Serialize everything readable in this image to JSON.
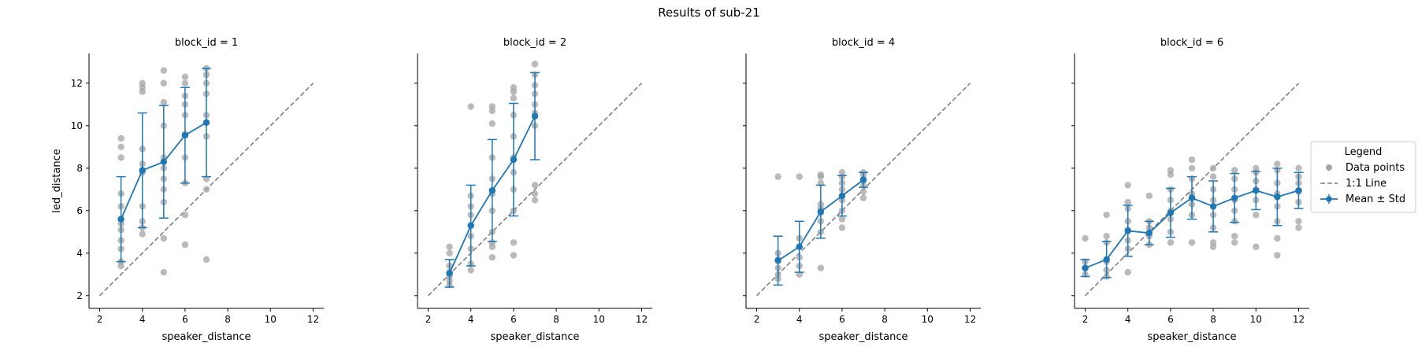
{
  "figure_title": "Results of sub-21",
  "legend": {
    "title": "Legend",
    "items": [
      {
        "label": "Data points",
        "kind": "dot"
      },
      {
        "label": "1:1 Line",
        "kind": "dash"
      },
      {
        "label": "Mean ± Std",
        "kind": "errorbar"
      }
    ]
  },
  "colors": {
    "points": "#a3a3a3",
    "line": "#7f7f7f",
    "mean": "#1f77b4"
  },
  "chart_data": [
    {
      "type": "scatter",
      "title": "block_id = 1",
      "xlabel": "speaker_distance",
      "ylabel": "led_distance",
      "xlim": [
        1.5,
        12.5
      ],
      "ylim": [
        1.4,
        13.4
      ],
      "xticks": [
        2,
        4,
        6,
        8,
        10,
        12
      ],
      "yticks": [
        2,
        4,
        6,
        8,
        10,
        12
      ],
      "identity_line": [
        2,
        12
      ],
      "points": [
        [
          3,
          3.4
        ],
        [
          3,
          3.6
        ],
        [
          3,
          4.2
        ],
        [
          3,
          4.6
        ],
        [
          3,
          5.1
        ],
        [
          3,
          5.4
        ],
        [
          3,
          6.2
        ],
        [
          3,
          6.8
        ],
        [
          3,
          8.5
        ],
        [
          3,
          9.0
        ],
        [
          3,
          9.4
        ],
        [
          4,
          4.9
        ],
        [
          4,
          5.2
        ],
        [
          4,
          5.5
        ],
        [
          4,
          6.2
        ],
        [
          4,
          7.8
        ],
        [
          4,
          8.2
        ],
        [
          4,
          8.9
        ],
        [
          4,
          11.6
        ],
        [
          4,
          11.8
        ],
        [
          4,
          12.0
        ],
        [
          5,
          3.1
        ],
        [
          5,
          4.7
        ],
        [
          5,
          6.4
        ],
        [
          5,
          7.0
        ],
        [
          5,
          7.5
        ],
        [
          5,
          8.0
        ],
        [
          5,
          8.5
        ],
        [
          5,
          10.0
        ],
        [
          5,
          11.1
        ],
        [
          5,
          12.0
        ],
        [
          5,
          12.6
        ],
        [
          6,
          4.4
        ],
        [
          6,
          5.8
        ],
        [
          6,
          7.3
        ],
        [
          6,
          8.5
        ],
        [
          6,
          9.6
        ],
        [
          6,
          10.5
        ],
        [
          6,
          11.0
        ],
        [
          6,
          11.4
        ],
        [
          6,
          12.0
        ],
        [
          6,
          12.3
        ],
        [
          7,
          3.7
        ],
        [
          7,
          7.0
        ],
        [
          7,
          7.5
        ],
        [
          7,
          9.5
        ],
        [
          7,
          10.5
        ],
        [
          7,
          11.5
        ],
        [
          7,
          12.0
        ],
        [
          7,
          12.4
        ],
        [
          7,
          12.7
        ]
      ],
      "mean": [
        {
          "x": 3,
          "y": 5.6,
          "sd": 2.0
        },
        {
          "x": 4,
          "y": 7.9,
          "sd": 2.7
        },
        {
          "x": 5,
          "y": 8.3,
          "sd": 2.65
        },
        {
          "x": 6,
          "y": 9.55,
          "sd": 2.25
        },
        {
          "x": 7,
          "y": 10.15,
          "sd": 2.55
        }
      ]
    },
    {
      "type": "scatter",
      "title": "block_id = 2",
      "xlabel": "speaker_distance",
      "ylabel": "",
      "xlim": [
        1.5,
        12.5
      ],
      "ylim": [
        1.4,
        13.4
      ],
      "xticks": [
        2,
        4,
        6,
        8,
        10,
        12
      ],
      "yticks": [
        2,
        4,
        6,
        8,
        10,
        12
      ],
      "identity_line": [
        2,
        12
      ],
      "points": [
        [
          3,
          2.5
        ],
        [
          3,
          2.7
        ],
        [
          3,
          2.9
        ],
        [
          3,
          3.1
        ],
        [
          3,
          3.4
        ],
        [
          3,
          4.0
        ],
        [
          3,
          4.3
        ],
        [
          4,
          3.2
        ],
        [
          4,
          3.5
        ],
        [
          4,
          4.2
        ],
        [
          4,
          4.8
        ],
        [
          4,
          5.3
        ],
        [
          4,
          5.8
        ],
        [
          4,
          6.2
        ],
        [
          4,
          6.7
        ],
        [
          4,
          10.9
        ],
        [
          5,
          3.8
        ],
        [
          5,
          4.3
        ],
        [
          5,
          4.5
        ],
        [
          5,
          5.0
        ],
        [
          5,
          6.0
        ],
        [
          5,
          6.8
        ],
        [
          5,
          7.5
        ],
        [
          5,
          8.5
        ],
        [
          5,
          10.1
        ],
        [
          5,
          10.7
        ],
        [
          5,
          10.9
        ],
        [
          6,
          3.9
        ],
        [
          6,
          4.5
        ],
        [
          6,
          6.0
        ],
        [
          6,
          7.0
        ],
        [
          6,
          7.8
        ],
        [
          6,
          8.5
        ],
        [
          6,
          9.5
        ],
        [
          6,
          10.5
        ],
        [
          6,
          11.3
        ],
        [
          6,
          11.6
        ],
        [
          6,
          11.8
        ],
        [
          7,
          6.5
        ],
        [
          7,
          6.8
        ],
        [
          7,
          7.2
        ],
        [
          7,
          10.0
        ],
        [
          7,
          10.6
        ],
        [
          7,
          11.0
        ],
        [
          7,
          11.5
        ],
        [
          7,
          11.9
        ],
        [
          7,
          12.4
        ],
        [
          7,
          12.9
        ]
      ],
      "mean": [
        {
          "x": 3,
          "y": 3.05,
          "sd": 0.65
        },
        {
          "x": 4,
          "y": 5.3,
          "sd": 1.9
        },
        {
          "x": 5,
          "y": 6.95,
          "sd": 2.4
        },
        {
          "x": 6,
          "y": 8.4,
          "sd": 2.65
        },
        {
          "x": 7,
          "y": 10.45,
          "sd": 2.05
        }
      ]
    },
    {
      "type": "scatter",
      "title": "block_id = 4",
      "xlabel": "speaker_distance",
      "ylabel": "",
      "xlim": [
        1.5,
        12.5
      ],
      "ylim": [
        1.4,
        13.4
      ],
      "xticks": [
        2,
        4,
        6,
        8,
        10,
        12
      ],
      "yticks": [
        2,
        4,
        6,
        8,
        10,
        12
      ],
      "identity_line": [
        2,
        12
      ],
      "points": [
        [
          3,
          2.8
        ],
        [
          3,
          3.0
        ],
        [
          3,
          3.3
        ],
        [
          3,
          3.7
        ],
        [
          3,
          4.0
        ],
        [
          3,
          7.6
        ],
        [
          4,
          3.0
        ],
        [
          4,
          3.4
        ],
        [
          4,
          3.8
        ],
        [
          4,
          4.3
        ],
        [
          4,
          4.7
        ],
        [
          4,
          7.6
        ],
        [
          5,
          3.3
        ],
        [
          5,
          5.0
        ],
        [
          5,
          5.5
        ],
        [
          5,
          5.9
        ],
        [
          5,
          6.1
        ],
        [
          5,
          6.3
        ],
        [
          5,
          7.3
        ],
        [
          5,
          7.6
        ],
        [
          5,
          7.7
        ],
        [
          6,
          5.2
        ],
        [
          6,
          5.6
        ],
        [
          6,
          6.0
        ],
        [
          6,
          6.5
        ],
        [
          6,
          7.0
        ],
        [
          6,
          7.3
        ],
        [
          6,
          7.6
        ],
        [
          6,
          7.8
        ],
        [
          7,
          6.6
        ],
        [
          7,
          6.9
        ],
        [
          7,
          7.2
        ],
        [
          7,
          7.5
        ],
        [
          7,
          7.7
        ],
        [
          7,
          7.8
        ]
      ],
      "mean": [
        {
          "x": 3,
          "y": 3.65,
          "sd": 1.15
        },
        {
          "x": 4,
          "y": 4.3,
          "sd": 1.2
        },
        {
          "x": 5,
          "y": 5.95,
          "sd": 1.25
        },
        {
          "x": 6,
          "y": 6.7,
          "sd": 0.95
        },
        {
          "x": 7,
          "y": 7.45,
          "sd": 0.35
        }
      ]
    },
    {
      "type": "scatter",
      "title": "block_id = 6",
      "xlabel": "speaker_distance",
      "ylabel": "",
      "xlim": [
        1.5,
        12.5
      ],
      "ylim": [
        1.4,
        13.4
      ],
      "xticks": [
        2,
        4,
        6,
        8,
        10,
        12
      ],
      "yticks": [
        2,
        4,
        6,
        8,
        10,
        12
      ],
      "identity_line": [
        2,
        12
      ],
      "points": [
        [
          2,
          3.0
        ],
        [
          2,
          3.3
        ],
        [
          2,
          3.6
        ],
        [
          2,
          4.7
        ],
        [
          3,
          2.9
        ],
        [
          3,
          3.2
        ],
        [
          3,
          3.6
        ],
        [
          3,
          4.5
        ],
        [
          3,
          4.8
        ],
        [
          3,
          5.8
        ],
        [
          4,
          3.1
        ],
        [
          4,
          4.2
        ],
        [
          4,
          4.6
        ],
        [
          4,
          5.1
        ],
        [
          4,
          5.5
        ],
        [
          4,
          6.1
        ],
        [
          4,
          6.4
        ],
        [
          4,
          7.2
        ],
        [
          5,
          4.4
        ],
        [
          5,
          4.8
        ],
        [
          5,
          5.2
        ],
        [
          5,
          5.5
        ],
        [
          5,
          6.7
        ],
        [
          6,
          4.5
        ],
        [
          6,
          5.0
        ],
        [
          6,
          5.6
        ],
        [
          6,
          6.0
        ],
        [
          6,
          6.5
        ],
        [
          6,
          7.0
        ],
        [
          6,
          7.7
        ],
        [
          6,
          7.9
        ],
        [
          7,
          4.5
        ],
        [
          7,
          5.8
        ],
        [
          7,
          6.3
        ],
        [
          7,
          6.8
        ],
        [
          7,
          7.5
        ],
        [
          7,
          8.0
        ],
        [
          7,
          8.4
        ],
        [
          8,
          4.3
        ],
        [
          8,
          4.5
        ],
        [
          8,
          5.2
        ],
        [
          8,
          5.8
        ],
        [
          8,
          6.5
        ],
        [
          8,
          7.0
        ],
        [
          8,
          7.6
        ],
        [
          8,
          8.0
        ],
        [
          9,
          4.5
        ],
        [
          9,
          4.8
        ],
        [
          9,
          5.5
        ],
        [
          9,
          6.0
        ],
        [
          9,
          6.5
        ],
        [
          9,
          7.0
        ],
        [
          9,
          7.5
        ],
        [
          9,
          7.9
        ],
        [
          10,
          4.3
        ],
        [
          10,
          5.8
        ],
        [
          10,
          6.5
        ],
        [
          10,
          7.0
        ],
        [
          10,
          7.4
        ],
        [
          10,
          7.8
        ],
        [
          10,
          8.0
        ],
        [
          11,
          3.9
        ],
        [
          11,
          4.7
        ],
        [
          11,
          5.5
        ],
        [
          11,
          6.2
        ],
        [
          11,
          6.8
        ],
        [
          11,
          7.3
        ],
        [
          11,
          7.9
        ],
        [
          11,
          8.2
        ],
        [
          12,
          5.2
        ],
        [
          12,
          5.5
        ],
        [
          12,
          6.4
        ],
        [
          12,
          6.9
        ],
        [
          12,
          7.3
        ],
        [
          12,
          7.6
        ],
        [
          12,
          8.0
        ]
      ],
      "mean": [
        {
          "x": 2,
          "y": 3.3,
          "sd": 0.4
        },
        {
          "x": 3,
          "y": 3.7,
          "sd": 0.85
        },
        {
          "x": 4,
          "y": 5.05,
          "sd": 1.2
        },
        {
          "x": 5,
          "y": 4.95,
          "sd": 0.55
        },
        {
          "x": 6,
          "y": 5.9,
          "sd": 1.15
        },
        {
          "x": 7,
          "y": 6.6,
          "sd": 1.0
        },
        {
          "x": 8,
          "y": 6.2,
          "sd": 1.2
        },
        {
          "x": 9,
          "y": 6.6,
          "sd": 1.15
        },
        {
          "x": 10,
          "y": 6.95,
          "sd": 0.9
        },
        {
          "x": 11,
          "y": 6.65,
          "sd": 1.35
        },
        {
          "x": 12,
          "y": 6.95,
          "sd": 0.85
        }
      ]
    }
  ]
}
